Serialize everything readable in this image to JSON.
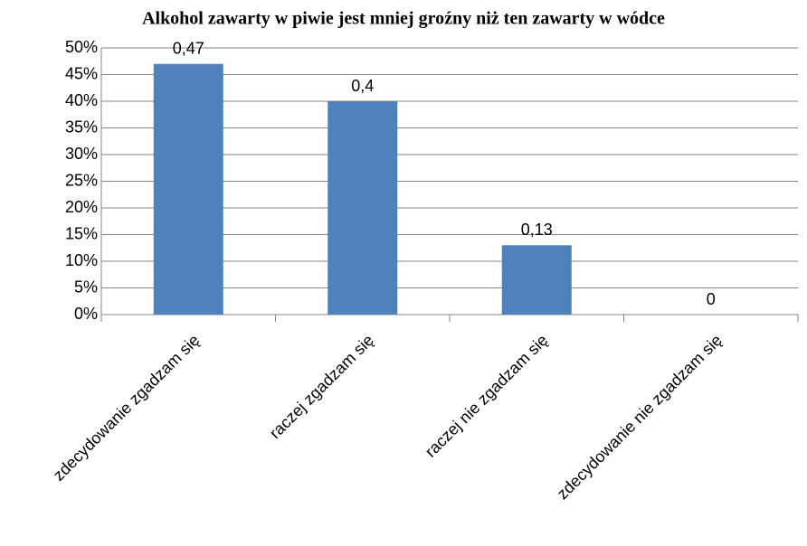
{
  "chart_data": {
    "type": "bar",
    "title": "Alkohol zawarty w piwie jest mniej groźny niż ten zawarty w wódce",
    "categories": [
      "zdecydowanie zgadzam się",
      "raczej zgadzam się",
      "raczej nie zgadzam się",
      "zdecydowanie nie zgadzam się"
    ],
    "values": [
      47,
      40,
      13,
      0
    ],
    "value_labels": [
      "0,47",
      "0,4",
      "0,13",
      "0"
    ],
    "color": "#4f81bd",
    "ylim": [
      0,
      50
    ],
    "yticks": [
      {
        "value": 0,
        "label": "0%"
      },
      {
        "value": 5,
        "label": "5%"
      },
      {
        "value": 10,
        "label": "10%"
      },
      {
        "value": 15,
        "label": "15%"
      },
      {
        "value": 20,
        "label": "20%"
      },
      {
        "value": 25,
        "label": "25%"
      },
      {
        "value": 30,
        "label": "30%"
      },
      {
        "value": 35,
        "label": "35%"
      },
      {
        "value": 40,
        "label": "40%"
      },
      {
        "value": 45,
        "label": "45%"
      },
      {
        "value": 50,
        "label": "50%"
      }
    ],
    "grid": true
  }
}
